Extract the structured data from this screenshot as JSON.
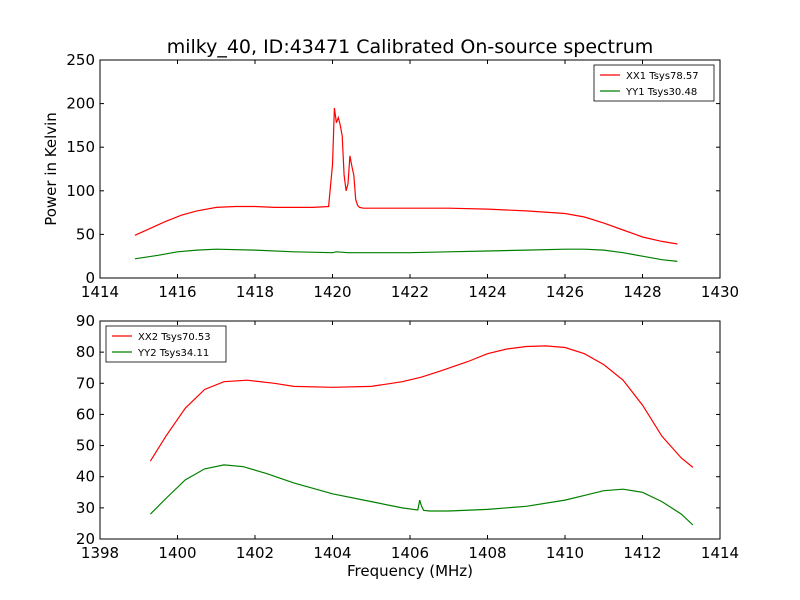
{
  "title": "milky_40, ID:43471 Calibrated On-source spectrum",
  "colors": {
    "xx": "#ff0000",
    "yy": "#008000"
  },
  "chart_data": [
    {
      "type": "line",
      "title": "milky_40, ID:43471 Calibrated On-source spectrum",
      "xlabel": "",
      "ylabel": "Power in Kelvin",
      "xlim": [
        1414,
        1430
      ],
      "ylim": [
        0,
        250
      ],
      "xticks": [
        1414,
        1416,
        1418,
        1420,
        1422,
        1424,
        1426,
        1428,
        1430
      ],
      "yticks": [
        0,
        50,
        100,
        150,
        200,
        250
      ],
      "grid": false,
      "legend_position": "top-right",
      "series": [
        {
          "name": "XX1 Tsys78.57",
          "color": "#ff0000",
          "x": [
            1414.9,
            1415.3,
            1415.7,
            1416.1,
            1416.5,
            1417.0,
            1417.5,
            1418.0,
            1418.5,
            1419.0,
            1419.5,
            1419.9,
            1420.0,
            1420.05,
            1420.1,
            1420.15,
            1420.2,
            1420.25,
            1420.3,
            1420.35,
            1420.4,
            1420.45,
            1420.5,
            1420.55,
            1420.6,
            1420.65,
            1420.7,
            1420.8,
            1421.0,
            1421.5,
            1422.0,
            1423.0,
            1424.0,
            1425.0,
            1426.0,
            1426.5,
            1427.0,
            1427.5,
            1428.0,
            1428.5,
            1428.9
          ],
          "y": [
            49,
            57,
            65,
            72,
            77,
            81,
            82,
            82,
            81,
            81,
            81,
            82,
            130,
            195,
            178,
            184,
            175,
            163,
            118,
            100,
            108,
            140,
            128,
            118,
            90,
            83,
            81,
            80,
            80,
            80,
            80,
            80,
            79,
            77,
            74,
            70,
            63,
            55,
            47,
            42,
            39
          ]
        },
        {
          "name": "YY1 Tsys30.48",
          "color": "#008000",
          "x": [
            1414.9,
            1415.5,
            1416.0,
            1416.5,
            1417.0,
            1418.0,
            1419.0,
            1420.0,
            1420.1,
            1420.4,
            1421.0,
            1422.0,
            1423.0,
            1424.0,
            1425.0,
            1426.0,
            1426.5,
            1427.0,
            1427.5,
            1428.0,
            1428.5,
            1428.9
          ],
          "y": [
            22,
            26,
            30,
            32,
            33,
            32,
            30,
            29,
            30,
            29,
            29,
            29,
            30,
            31,
            32,
            33,
            33,
            32,
            29,
            25,
            21,
            19
          ]
        }
      ]
    },
    {
      "type": "line",
      "title": "",
      "xlabel": "Frequency (MHz)",
      "ylabel": "",
      "xlim": [
        1398,
        1414
      ],
      "ylim": [
        20,
        90
      ],
      "xticks": [
        1398,
        1400,
        1402,
        1404,
        1406,
        1408,
        1410,
        1412,
        1414
      ],
      "yticks": [
        20,
        30,
        40,
        50,
        60,
        70,
        80,
        90
      ],
      "grid": false,
      "legend_position": "top-left",
      "series": [
        {
          "name": "XX2 Tsys70.53",
          "color": "#ff0000",
          "x": [
            1399.3,
            1399.7,
            1400.2,
            1400.7,
            1401.2,
            1401.8,
            1402.5,
            1403.0,
            1404.0,
            1405.0,
            1405.8,
            1406.3,
            1406.8,
            1407.5,
            1408.0,
            1408.5,
            1409.0,
            1409.5,
            1410.0,
            1410.5,
            1411.0,
            1411.5,
            1412.0,
            1412.5,
            1413.0,
            1413.3
          ],
          "y": [
            45,
            53,
            62,
            68,
            70.5,
            71,
            70,
            69,
            68.7,
            69,
            70.5,
            72,
            74,
            77,
            79.5,
            81,
            81.8,
            82,
            81.5,
            79.5,
            76,
            71,
            63,
            53,
            46,
            43
          ]
        },
        {
          "name": "YY2 Tsys34.11",
          "color": "#008000",
          "x": [
            1399.3,
            1399.7,
            1400.2,
            1400.7,
            1401.2,
            1401.7,
            1402.3,
            1403.0,
            1404.0,
            1405.0,
            1405.8,
            1406.2,
            1406.25,
            1406.3,
            1406.35,
            1406.5,
            1407.0,
            1408.0,
            1409.0,
            1410.0,
            1410.5,
            1411.0,
            1411.5,
            1412.0,
            1412.5,
            1413.0,
            1413.3
          ],
          "y": [
            28,
            33,
            39,
            42.5,
            43.8,
            43.2,
            41,
            38,
            34.5,
            32,
            30,
            29.3,
            32.5,
            30.5,
            29.2,
            29,
            29,
            29.5,
            30.5,
            32.5,
            34,
            35.5,
            36,
            35,
            32,
            28,
            24.5
          ]
        }
      ]
    }
  ]
}
